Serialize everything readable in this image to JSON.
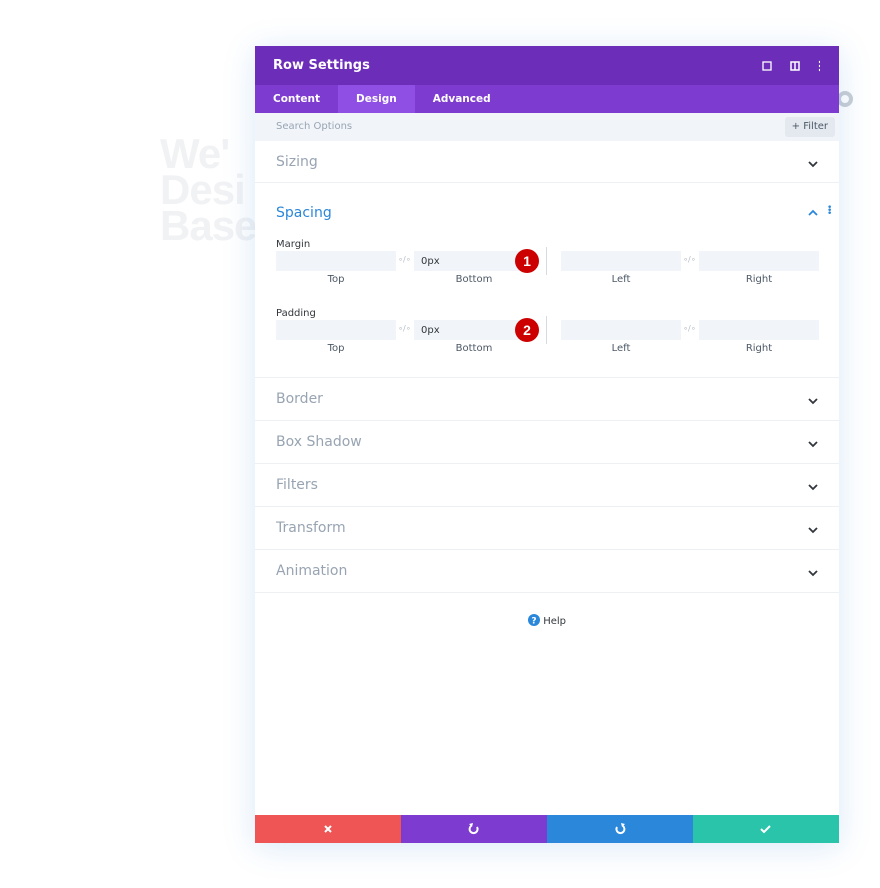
{
  "background_text": [
    "We'",
    "Desi",
    "Base"
  ],
  "header": {
    "title": "Row Settings"
  },
  "tabs": [
    {
      "label": "Content"
    },
    {
      "label": "Design",
      "active": true
    },
    {
      "label": "Advanced"
    }
  ],
  "search": {
    "placeholder": "Search Options",
    "filter": "Filter"
  },
  "sections": [
    {
      "title": "Sizing"
    },
    {
      "title": "Spacing",
      "open": true,
      "groups": [
        {
          "label": "Margin",
          "badge": "1",
          "fields": [
            {
              "label": "Top"
            },
            {
              "label": "Bottom",
              "value": "0px"
            },
            {
              "label": "Left"
            },
            {
              "label": "Right"
            }
          ]
        },
        {
          "label": "Padding",
          "badge": "2",
          "fields": [
            {
              "label": "Top"
            },
            {
              "label": "Bottom",
              "value": "0px"
            },
            {
              "label": "Left"
            },
            {
              "label": "Right"
            }
          ]
        }
      ]
    },
    {
      "title": "Border"
    },
    {
      "title": "Box Shadow"
    },
    {
      "title": "Filters"
    },
    {
      "title": "Transform"
    },
    {
      "title": "Animation"
    }
  ],
  "help": "Help"
}
